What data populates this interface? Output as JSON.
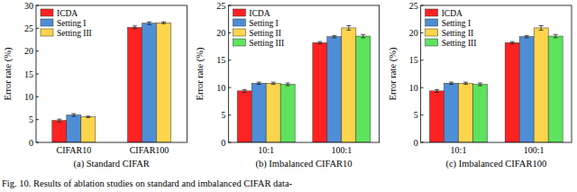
{
  "chart_data": [
    {
      "type": "bar",
      "title": "(a) Standard CIFAR",
      "y_label": "Error rate (%)",
      "categories": [
        "CIFAR10",
        "CIFAR100"
      ],
      "series": [
        {
          "name": "ICDA",
          "color": "#ff2222",
          "values": [
            4.8,
            25.2
          ],
          "errors": [
            0.3,
            0.3
          ]
        },
        {
          "name": "Setting I",
          "color": "#4e8ed6",
          "values": [
            6.0,
            26.1
          ],
          "errors": [
            0.3,
            0.3
          ]
        },
        {
          "name": "Setting III",
          "color": "#fdd54c",
          "values": [
            5.6,
            26.2
          ],
          "errors": [
            0.15,
            0.2
          ]
        }
      ],
      "ylim": [
        0,
        30
      ],
      "yticks": [
        0,
        5,
        10,
        15,
        20,
        25,
        30
      ],
      "grid": false,
      "legend": "upper left"
    },
    {
      "type": "bar",
      "title": "(b) Imbalanced CIFAR10",
      "y_label": "Error rate (%)",
      "categories": [
        "10:1",
        "100:1"
      ],
      "series": [
        {
          "name": "ICDA",
          "color": "#ff2222",
          "values": [
            9.4,
            18.2
          ],
          "errors": [
            0.25,
            0.2
          ]
        },
        {
          "name": "Setting I",
          "color": "#4e8ed6",
          "values": [
            10.8,
            19.3
          ],
          "errors": [
            0.2,
            0.2
          ]
        },
        {
          "name": "Setting II",
          "color": "#fdd54c",
          "values": [
            10.8,
            20.9
          ],
          "errors": [
            0.2,
            0.4
          ]
        },
        {
          "name": "Setting III",
          "color": "#5de35d",
          "values": [
            10.6,
            19.4
          ],
          "errors": [
            0.25,
            0.3
          ]
        }
      ],
      "ylim": [
        0,
        25
      ],
      "yticks": [
        0,
        5,
        10,
        15,
        20,
        25
      ],
      "grid": false,
      "legend": "upper left"
    },
    {
      "type": "bar",
      "title": "(c) Imbalanced CIFAR100",
      "y_label": "Error rate (%)",
      "categories": [
        "10:1",
        "100:1"
      ],
      "series": [
        {
          "name": "ICDA",
          "color": "#ff2222",
          "values": [
            9.4,
            18.2
          ],
          "errors": [
            0.25,
            0.2
          ]
        },
        {
          "name": "Setting I",
          "color": "#4e8ed6",
          "values": [
            10.8,
            19.3
          ],
          "errors": [
            0.2,
            0.2
          ]
        },
        {
          "name": "Setting II",
          "color": "#fdd54c",
          "values": [
            10.8,
            20.9
          ],
          "errors": [
            0.2,
            0.4
          ]
        },
        {
          "name": "Setting III",
          "color": "#5de35d",
          "values": [
            10.6,
            19.4
          ],
          "errors": [
            0.25,
            0.3
          ]
        }
      ],
      "ylim": [
        0,
        25
      ],
      "yticks": [
        0,
        5,
        10,
        15,
        20,
        25
      ],
      "grid": false,
      "legend": "upper left"
    }
  ],
  "caption": "Fig. 10.  Results of ablation studies on standard and imbalanced CIFAR data-"
}
